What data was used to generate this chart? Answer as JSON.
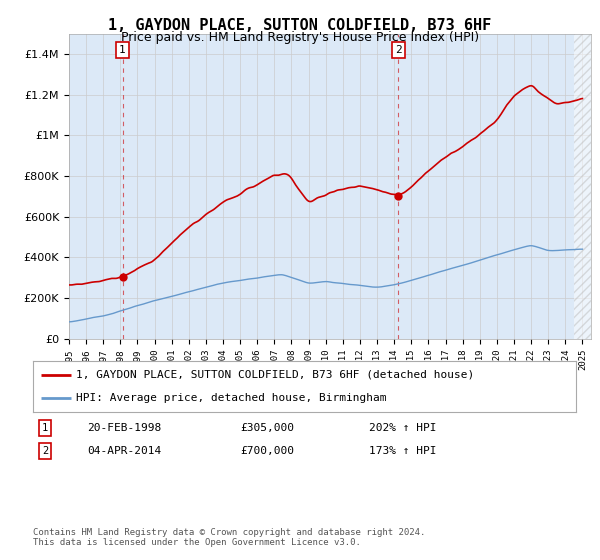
{
  "title": "1, GAYDON PLACE, SUTTON COLDFIELD, B73 6HF",
  "subtitle": "Price paid vs. HM Land Registry's House Price Index (HPI)",
  "ylim": [
    0,
    1500000
  ],
  "yticks": [
    0,
    200000,
    400000,
    600000,
    800000,
    1000000,
    1200000,
    1400000
  ],
  "ytick_labels": [
    "£0",
    "£200K",
    "£400K",
    "£600K",
    "£800K",
    "£1M",
    "£1.2M",
    "£1.4M"
  ],
  "sale1_year": 1998.13,
  "sale1_price": 305000,
  "sale1_label": "20-FEB-1998",
  "sale1_amount": "£305,000",
  "sale1_hpi": "202% ↑ HPI",
  "sale2_year": 2014.25,
  "sale2_price": 700000,
  "sale2_label": "04-APR-2014",
  "sale2_amount": "£700,000",
  "sale2_hpi": "173% ↑ HPI",
  "line_color": "#cc0000",
  "hpi_color": "#6699cc",
  "background_color": "#dce9f7",
  "plot_bg": "#ffffff",
  "grid_color": "#cccccc",
  "legend1": "1, GAYDON PLACE, SUTTON COLDFIELD, B73 6HF (detached house)",
  "legend2": "HPI: Average price, detached house, Birmingham",
  "footnote": "Contains HM Land Registry data © Crown copyright and database right 2024.\nThis data is licensed under the Open Government Licence v3.0.",
  "title_fontsize": 11,
  "subtitle_fontsize": 9,
  "xmin": 1995,
  "xmax": 2025.5
}
